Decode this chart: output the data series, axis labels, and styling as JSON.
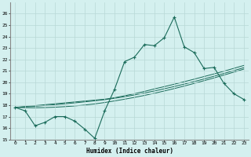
{
  "xlabel": "Humidex (Indice chaleur)",
  "x_values": [
    0,
    1,
    2,
    3,
    4,
    5,
    6,
    7,
    8,
    9,
    10,
    11,
    12,
    13,
    14,
    15,
    16,
    17,
    18,
    19,
    20,
    21,
    22,
    23
  ],
  "y_main": [
    17.8,
    17.5,
    16.2,
    16.5,
    17.0,
    17.0,
    16.6,
    15.9,
    15.1,
    17.5,
    19.4,
    21.8,
    22.2,
    23.3,
    23.2,
    23.9,
    25.7,
    23.1,
    22.6,
    21.2,
    21.3,
    19.9,
    19.0,
    18.5
  ],
  "y_line1": [
    17.8,
    17.88,
    17.96,
    18.04,
    18.12,
    18.2,
    18.28,
    18.36,
    18.44,
    18.52,
    18.65,
    18.82,
    19.0,
    19.2,
    19.42,
    19.62,
    19.83,
    20.05,
    20.27,
    20.5,
    20.73,
    20.97,
    21.22,
    21.47
  ],
  "y_line2": [
    17.8,
    17.85,
    17.9,
    17.97,
    18.04,
    18.12,
    18.2,
    18.29,
    18.38,
    18.48,
    18.6,
    18.74,
    18.89,
    19.06,
    19.24,
    19.43,
    19.63,
    19.84,
    20.06,
    20.29,
    20.53,
    20.77,
    21.02,
    21.28
  ],
  "y_line3": [
    17.8,
    17.78,
    17.77,
    17.79,
    17.82,
    17.87,
    17.93,
    18.01,
    18.11,
    18.23,
    18.37,
    18.52,
    18.68,
    18.85,
    19.04,
    19.24,
    19.45,
    19.67,
    19.9,
    20.14,
    20.38,
    20.63,
    20.89,
    21.15
  ],
  "color_main": "#1a6b5a",
  "color_lines": "#1a6b5a",
  "bg_color": "#d4f0ef",
  "grid_color": "#b8d8d6",
  "ylim": [
    15,
    27
  ],
  "yticks": [
    15,
    16,
    17,
    18,
    19,
    20,
    21,
    22,
    23,
    24,
    25,
    26
  ],
  "xlim": [
    -0.5,
    23.5
  ],
  "xticks": [
    0,
    1,
    2,
    3,
    4,
    5,
    6,
    7,
    8,
    9,
    10,
    11,
    12,
    13,
    14,
    15,
    16,
    17,
    18,
    19,
    20,
    21,
    22,
    23
  ]
}
